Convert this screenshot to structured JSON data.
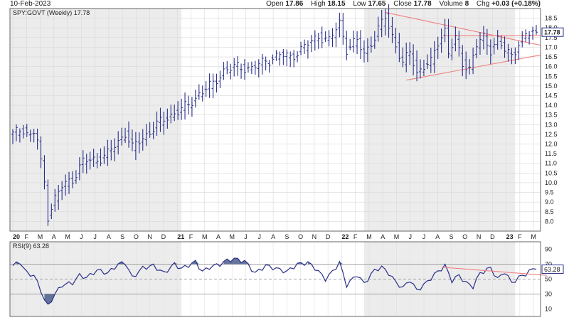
{
  "header": {
    "date": "10-Feb-2023",
    "open_label": "Open",
    "open": "17.86",
    "high_label": "High",
    "high": "18.15",
    "low_label": "Low",
    "low": "17.65",
    "close_label": "Close",
    "close": "17.78",
    "volume_label": "Volume",
    "volume": "8",
    "chg_label": "Chg",
    "chg": "+0.03 (+0.18%)"
  },
  "chart_data": [
    {
      "type": "ohlc",
      "legend": "SPY:GOVT (Weekly) 17.78",
      "last_value": "17.78",
      "ylim": [
        7.5,
        19.0
      ],
      "y_ticks": [
        "8.0",
        "8.5",
        "9.0",
        "9.5",
        "10.0",
        "10.5",
        "11.0",
        "11.5",
        "12.0",
        "12.5",
        "13.0",
        "13.5",
        "14.0",
        "14.5",
        "15.0",
        "15.5",
        "16.0",
        "16.5",
        "17.0",
        "17.5",
        "18.0",
        "18.5"
      ],
      "x_labels": [
        "20",
        "F",
        "M",
        "A",
        "M",
        "J",
        "J",
        "A",
        "S",
        "O",
        "N",
        "D",
        "21",
        "F",
        "M",
        "A",
        "M",
        "J",
        "J",
        "A",
        "S",
        "O",
        "N",
        "D",
        "22",
        "F",
        "M",
        "A",
        "M",
        "J",
        "J",
        "A",
        "S",
        "O",
        "N",
        "D",
        "23",
        "F",
        "M"
      ],
      "year_labels": [
        "20",
        "21",
        "22",
        "23"
      ],
      "keyframes": [
        [
          0,
          12.5
        ],
        [
          3,
          12.8
        ],
        [
          5,
          12.4
        ],
        [
          6,
          12.6
        ],
        [
          7,
          12.2
        ],
        [
          8,
          11.0
        ],
        [
          9,
          10.0
        ],
        [
          10,
          8.3
        ],
        [
          12,
          9.2
        ],
        [
          14,
          9.8
        ],
        [
          17,
          10.2
        ],
        [
          20,
          11.1
        ],
        [
          24,
          11.2
        ],
        [
          27,
          11.5
        ],
        [
          30,
          12.1
        ],
        [
          32,
          12.6
        ],
        [
          34,
          11.8
        ],
        [
          37,
          12.3
        ],
        [
          41,
          13.0
        ],
        [
          45,
          13.5
        ],
        [
          50,
          14.0
        ],
        [
          53,
          14.6
        ],
        [
          57,
          15.1
        ],
        [
          60,
          15.8
        ],
        [
          64,
          16.0
        ],
        [
          68,
          15.9
        ],
        [
          72,
          16.3
        ],
        [
          76,
          16.6
        ],
        [
          79,
          16.5
        ],
        [
          83,
          17.0
        ],
        [
          87,
          17.6
        ],
        [
          90,
          17.3
        ],
        [
          93,
          18.3
        ],
        [
          95,
          16.9
        ],
        [
          98,
          17.3
        ],
        [
          100,
          16.7
        ],
        [
          103,
          17.5
        ],
        [
          106,
          18.6
        ],
        [
          107,
          18.1
        ],
        [
          109,
          17.1
        ],
        [
          111,
          16.1
        ],
        [
          113,
          16.8
        ],
        [
          115,
          15.7
        ],
        [
          117,
          16.0
        ],
        [
          119,
          16.2
        ],
        [
          121,
          17.3
        ],
        [
          123,
          17.9
        ],
        [
          124,
          16.7
        ],
        [
          126,
          17.4
        ],
        [
          128,
          16.2
        ],
        [
          130,
          15.9
        ],
        [
          132,
          17.1
        ],
        [
          134,
          17.5
        ],
        [
          136,
          16.9
        ],
        [
          138,
          17.4
        ],
        [
          140,
          16.8
        ],
        [
          142,
          16.6
        ],
        [
          144,
          17.2
        ],
        [
          146,
          17.6
        ],
        [
          148,
          17.78
        ]
      ],
      "trendlines": [
        {
          "from": [
            106,
            18.8
          ],
          "to": [
            155,
            17.1
          ],
          "color": "#f08080"
        },
        {
          "from": [
            112,
            15.3
          ],
          "to": [
            155,
            16.6
          ],
          "color": "#f08080"
        },
        {
          "from": [
            123,
            17.6
          ],
          "to": [
            155,
            17.6
          ],
          "color": "#f08080"
        }
      ]
    },
    {
      "type": "line",
      "legend": "RSI(9) 63.28",
      "last_value": "63.28",
      "ylim": [
        0,
        100
      ],
      "y_ticks": [
        "10",
        "30",
        "50",
        "70",
        "90"
      ],
      "levels": [
        30,
        50,
        70
      ],
      "keyframes": [
        [
          0,
          68
        ],
        [
          2,
          73
        ],
        [
          4,
          58
        ],
        [
          6,
          55
        ],
        [
          8,
          35
        ],
        [
          9,
          22
        ],
        [
          10,
          14
        ],
        [
          12,
          30
        ],
        [
          14,
          42
        ],
        [
          17,
          45
        ],
        [
          19,
          55
        ],
        [
          21,
          52
        ],
        [
          24,
          62
        ],
        [
          27,
          58
        ],
        [
          30,
          70
        ],
        [
          32,
          72
        ],
        [
          34,
          52
        ],
        [
          37,
          65
        ],
        [
          40,
          68
        ],
        [
          43,
          58
        ],
        [
          46,
          70
        ],
        [
          48,
          64
        ],
        [
          52,
          73
        ],
        [
          54,
          60
        ],
        [
          56,
          66
        ],
        [
          59,
          70
        ],
        [
          61,
          75
        ],
        [
          63,
          77
        ],
        [
          66,
          74
        ],
        [
          69,
          58
        ],
        [
          72,
          68
        ],
        [
          75,
          64
        ],
        [
          78,
          60
        ],
        [
          81,
          70
        ],
        [
          84,
          72
        ],
        [
          86,
          65
        ],
        [
          89,
          50
        ],
        [
          91,
          60
        ],
        [
          93,
          72
        ],
        [
          95,
          42
        ],
        [
          98,
          56
        ],
        [
          100,
          44
        ],
        [
          103,
          62
        ],
        [
          105,
          66
        ],
        [
          107,
          58
        ],
        [
          109,
          46
        ],
        [
          111,
          38
        ],
        [
          113,
          49
        ],
        [
          115,
          35
        ],
        [
          117,
          42
        ],
        [
          120,
          56
        ],
        [
          123,
          68
        ],
        [
          125,
          48
        ],
        [
          127,
          55
        ],
        [
          129,
          45
        ],
        [
          131,
          40
        ],
        [
          133,
          58
        ],
        [
          136,
          65
        ],
        [
          138,
          50
        ],
        [
          140,
          60
        ],
        [
          142,
          45
        ],
        [
          144,
          52
        ],
        [
          146,
          57
        ],
        [
          148,
          63.28
        ]
      ],
      "trendline": {
        "from": [
          122,
          66
        ],
        "to": [
          152,
          55
        ],
        "color": "#f08080"
      }
    }
  ]
}
